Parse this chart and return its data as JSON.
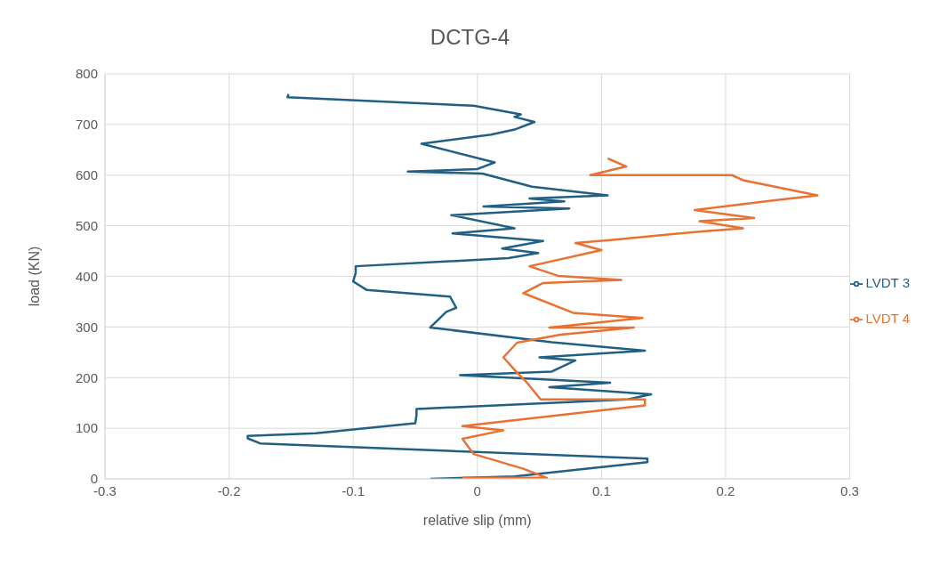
{
  "chart_data": {
    "type": "line",
    "title": "DCTG-4",
    "xlabel": "relative slip (mm)",
    "ylabel": "load (KN)",
    "xlim": [
      -0.3,
      0.3
    ],
    "xticks": [
      -0.3,
      -0.2,
      -0.1,
      0,
      0.1,
      0.2,
      0.3
    ],
    "ylim": [
      0,
      800
    ],
    "yticks": [
      0,
      100,
      200,
      300,
      400,
      500,
      600,
      700,
      800
    ],
    "grid": true,
    "legend": "right",
    "marker": "none",
    "line_style": "solid",
    "series": [
      {
        "name": "LVDT 3",
        "color": "#215f84",
        "x": [
          -0.038,
          0.03,
          0.137,
          0.137,
          -0.175,
          -0.185,
          -0.185,
          -0.13,
          -0.05,
          -0.049,
          -0.049,
          0.121,
          0.14,
          0.058,
          0.107,
          -0.014,
          0.06,
          0.079,
          0.05,
          0.135,
          0.06,
          -0.038,
          -0.025,
          -0.017,
          -0.022,
          -0.089,
          -0.1,
          -0.098,
          -0.098,
          0.025,
          0.049,
          0.02,
          0.053,
          -0.02,
          0.03,
          -0.021,
          0.074,
          0.005,
          0.07,
          0.042,
          0.105,
          0.044,
          0.004,
          -0.056,
          0.0,
          0.014,
          -0.045,
          0.011,
          0.03,
          0.046,
          0.03,
          0.035,
          -0.003,
          -0.153,
          -0.152
        ],
        "values": [
          0,
          5,
          33,
          40,
          70,
          80,
          85,
          90,
          110,
          126,
          138,
          157,
          167,
          181,
          190,
          205,
          212,
          234,
          240,
          253,
          270,
          299,
          330,
          338,
          360,
          373,
          390,
          407,
          420,
          436,
          446,
          455,
          470,
          485,
          495,
          521,
          534,
          538,
          548,
          554,
          560,
          577,
          603,
          607,
          612,
          625,
          662,
          680,
          690,
          705,
          715,
          720,
          737,
          754,
          760
        ]
      },
      {
        "name": "LVDT 4",
        "color": "#e97132",
        "x": [
          -0.012,
          0.056,
          0.037,
          -0.003,
          -0.012,
          0.021,
          -0.012,
          0.135,
          0.135,
          0.051,
          0.04,
          0.032,
          0.021,
          0.032,
          0.067,
          0.126,
          0.058,
          0.133,
          0.077,
          0.037,
          0.053,
          0.116,
          0.065,
          0.042,
          0.1,
          0.079,
          0.109,
          0.181,
          0.214,
          0.179,
          0.223,
          0.175,
          0.232,
          0.274,
          0.214,
          0.205,
          0.091,
          0.12,
          0.105
        ],
        "values": [
          2,
          2,
          20,
          49,
          79,
          96,
          104,
          145,
          157,
          157,
          190,
          210,
          240,
          269,
          285,
          299,
          299,
          318,
          328,
          367,
          387,
          393,
          401,
          420,
          452,
          466,
          472,
          489,
          495,
          509,
          515,
          531,
          548,
          560,
          590,
          600,
          600,
          617,
          633
        ]
      }
    ]
  }
}
